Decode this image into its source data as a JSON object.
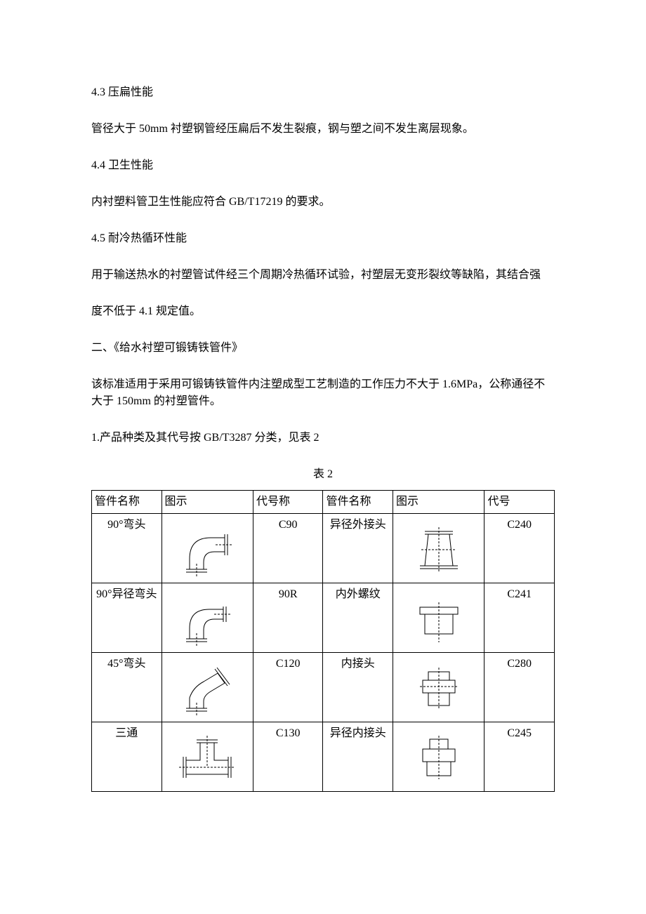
{
  "paragraphs": {
    "p1": "4.3 压扁性能",
    "p2": "管径大于 50mm 衬塑钢管经压扁后不发生裂痕，钢与塑之间不发生离层现象。",
    "p3": "4.4 卫生性能",
    "p4": "内衬塑料管卫生性能应符合 GB/T17219 的要求。",
    "p5": "4.5 耐冷热循环性能",
    "p6": "用于输送热水的衬塑管试件经三个周期冷热循环试验，衬塑层无变形裂纹等缺陷，其结合强",
    "p7": "度不低于 4.1 规定值。",
    "p8": "二、《给水衬塑可锻铸铁管件》",
    "p9": "该标准适用于采用可锻铸铁管件内注塑成型工艺制造的工作压力不大于 1.6MPa，公称通径不大于 150mm 的衬塑管件。",
    "p10": "1.产品种类及其代号按 GB/T3287 分类，见表 2"
  },
  "table": {
    "caption": "表 2",
    "headers": {
      "h1": "管件名称",
      "h2": "图示",
      "h3": "代号称",
      "h4": "管件名称",
      "h5": "图示",
      "h6": "代号"
    },
    "rows": [
      {
        "name1": "90°弯头",
        "code1": "C90",
        "name2": "异径外接头",
        "code2": "C240",
        "icon1": "elbow90",
        "icon2": "reducer-ext"
      },
      {
        "name1": "90°异径弯头",
        "code1": "90R",
        "name2": "内外螺纹",
        "code2": "C241",
        "icon1": "elbow90r",
        "icon2": "nipple"
      },
      {
        "name1": "45°弯头",
        "code1": "C120",
        "name2": "内接头",
        "code2": "C280",
        "icon1": "elbow45",
        "icon2": "coupling"
      },
      {
        "name1": "三通",
        "code1": "C130",
        "name2": "异径内接头",
        "code2": "C245",
        "icon1": "tee",
        "icon2": "reducer-int"
      }
    ],
    "stroke": "#000000",
    "stroke_width": 1
  }
}
